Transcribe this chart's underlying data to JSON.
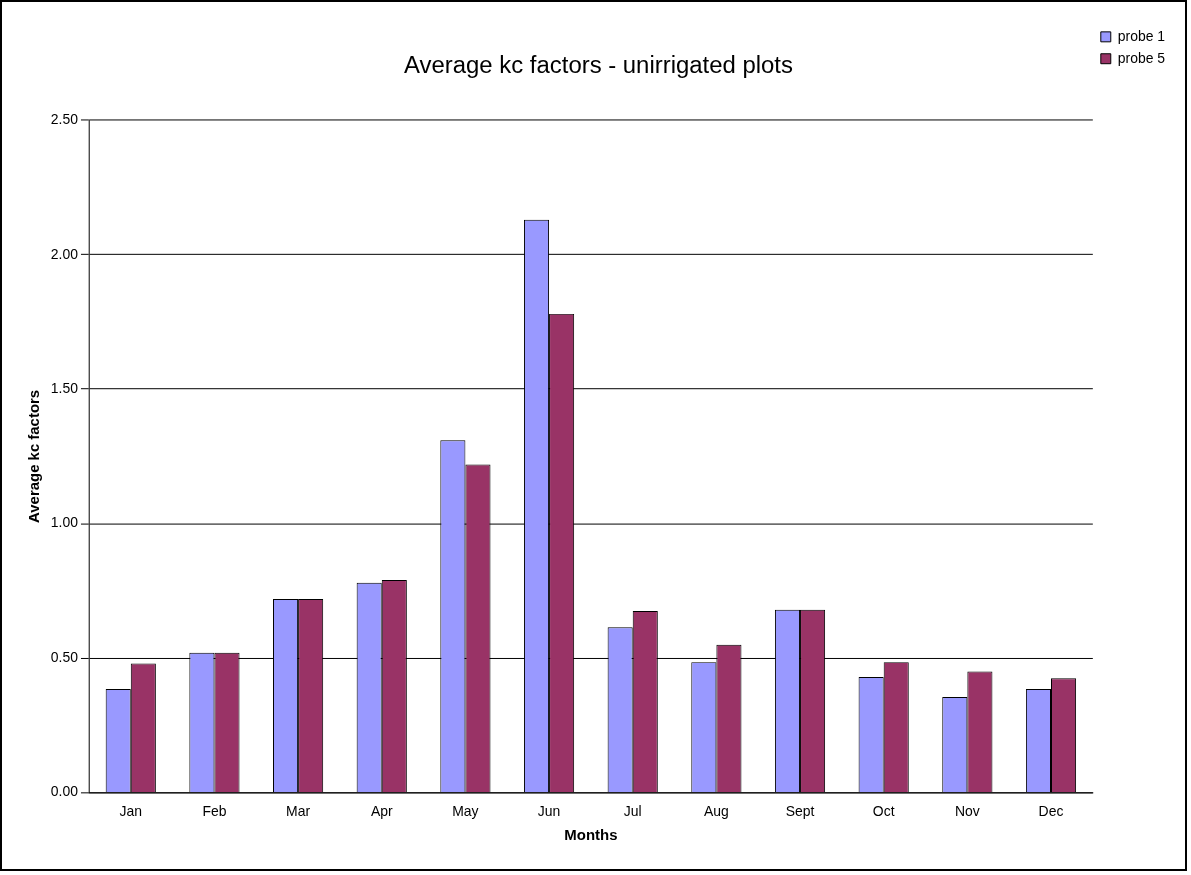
{
  "chart_data": {
    "type": "bar",
    "title": "Average kc factors - unirrigated plots",
    "xlabel": "Months",
    "ylabel": "Average kc factors",
    "categories": [
      "Jan",
      "Feb",
      "Mar",
      "Apr",
      "May",
      "Jun",
      "Jul",
      "Aug",
      "Sept",
      "Oct",
      "Nov",
      "Dec"
    ],
    "series": [
      {
        "name": "probe 1",
        "color": "#9999ff",
        "values": [
          0.385,
          0.52,
          0.72,
          0.78,
          1.31,
          2.13,
          0.615,
          0.485,
          0.68,
          0.43,
          0.355,
          0.385
        ]
      },
      {
        "name": "probe 5",
        "color": "#993366",
        "values": [
          0.48,
          0.52,
          0.72,
          0.79,
          1.22,
          1.78,
          0.675,
          0.55,
          0.68,
          0.485,
          0.45,
          0.425
        ]
      }
    ],
    "ylim": [
      0,
      2.5
    ],
    "yticks": [
      {
        "value": 0,
        "label": "0.00"
      },
      {
        "value": 0.5,
        "label": "0.50"
      },
      {
        "value": 1,
        "label": "1.00"
      },
      {
        "value": 1.5,
        "label": "1.50"
      },
      {
        "value": 2,
        "label": "2.00"
      },
      {
        "value": 2.5,
        "label": "2.50"
      }
    ],
    "grid": "y",
    "legend": "top right"
  }
}
